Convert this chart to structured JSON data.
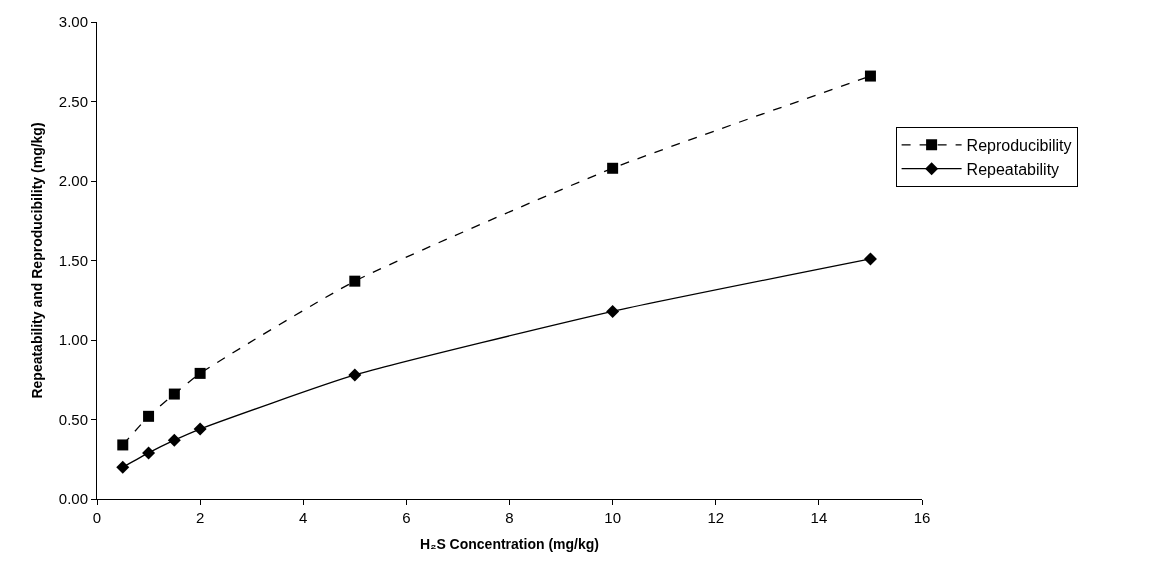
{
  "chart_data": {
    "type": "line",
    "xlabel": "H₂S Concentration (mg/kg)",
    "ylabel": "Repeatability and Reproducibility (mg/kg)",
    "x": [
      0.5,
      1,
      1.5,
      2,
      5,
      10,
      15
    ],
    "series": [
      {
        "name": "Reproducibility",
        "color": "#000000",
        "marker": "square",
        "line_style": "dashed",
        "values": [
          0.34,
          0.52,
          0.66,
          0.79,
          1.37,
          2.08,
          2.66
        ]
      },
      {
        "name": "Repeatability",
        "color": "#000000",
        "marker": "diamond",
        "line_style": "solid",
        "values": [
          0.2,
          0.29,
          0.37,
          0.44,
          0.78,
          1.18,
          1.51
        ]
      }
    ],
    "xlim": [
      0,
      16
    ],
    "xticks": [
      0,
      2,
      4,
      6,
      8,
      10,
      12,
      14,
      16
    ],
    "ylim": [
      0,
      3
    ],
    "yticks": [
      {
        "value": 0,
        "label": "0.00"
      },
      {
        "value": 0.5,
        "label": "0.50"
      },
      {
        "value": 1,
        "label": "1.00"
      },
      {
        "value": 1.5,
        "label": "1.50"
      },
      {
        "value": 2,
        "label": "2.00"
      },
      {
        "value": 2.5,
        "label": "2.50"
      },
      {
        "value": 3,
        "label": "3.00"
      }
    ],
    "grid": false,
    "legend": "right"
  }
}
